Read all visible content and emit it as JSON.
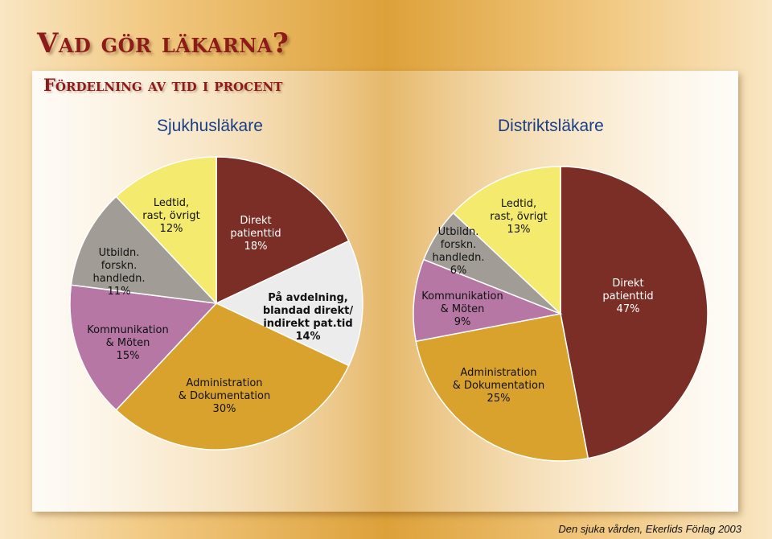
{
  "header": {
    "title": "Vad gör läkarna?",
    "subtitle": "Fördelning av tid i procent"
  },
  "colors": {
    "Direkt patienttid": "#7a2e25",
    "På avdelning, blandad direkt/ indirekt pat.tid": "#ececec",
    "Administration & Dokumentation": "#d9a22d",
    "Kommunikation & Möten": "#b677a5",
    "Utbildn. forskn. handledn.": "#a19d96",
    "Ledtid, rast, övrigt": "#f3ea6e",
    "title_text": "#1a3f86",
    "heading_text": "#8e1a1a"
  },
  "chart_data": [
    {
      "type": "pie",
      "title": "Sjukhusläkare",
      "slices": [
        {
          "key": "Direkt patienttid",
          "lines": [
            "Direkt",
            "patienttid",
            "18%"
          ],
          "value": 18
        },
        {
          "key": "På avdelning, blandad direkt/ indirekt pat.tid",
          "lines": [
            "På avdelning,",
            "blandad direkt/",
            "indirekt pat.tid",
            "14%"
          ],
          "value": 14
        },
        {
          "key": "Administration & Dokumentation",
          "lines": [
            "Administration",
            "& Dokumentation",
            "30%"
          ],
          "value": 30
        },
        {
          "key": "Kommunikation & Möten",
          "lines": [
            "Kommunikation",
            "& Möten",
            "15%"
          ],
          "value": 15
        },
        {
          "key": "Utbildn. forskn. handledn.",
          "lines": [
            "Utbildn.",
            "forskn.",
            "handledn.",
            "11%"
          ],
          "value": 11
        },
        {
          "key": "Ledtid, rast, övrigt",
          "lines": [
            "Ledtid,",
            "rast, övrigt",
            "12%"
          ],
          "value": 12
        }
      ]
    },
    {
      "type": "pie",
      "title": "Distriktsläkare",
      "slices": [
        {
          "key": "Direkt patienttid",
          "lines": [
            "Direkt",
            "patienttid",
            "47%"
          ],
          "value": 47
        },
        {
          "key": "Administration & Dokumentation",
          "lines": [
            "Administration",
            "& Dokumentation",
            "25%"
          ],
          "value": 25
        },
        {
          "key": "Kommunikation & Möten",
          "lines": [
            "Kommunikation",
            "& Möten",
            "9%"
          ],
          "value": 9
        },
        {
          "key": "Utbildn. forskn. handledn.",
          "lines": [
            "Utbildn.",
            "forskn.",
            "handledn.",
            "6%"
          ],
          "value": 6
        },
        {
          "key": "Ledtid, rast, övrigt",
          "lines": [
            "Ledtid,",
            "rast, övrigt",
            "13%"
          ],
          "value": 13
        }
      ]
    }
  ],
  "caption": "Den sjuka vården, Ekerlids Förlag 2003"
}
